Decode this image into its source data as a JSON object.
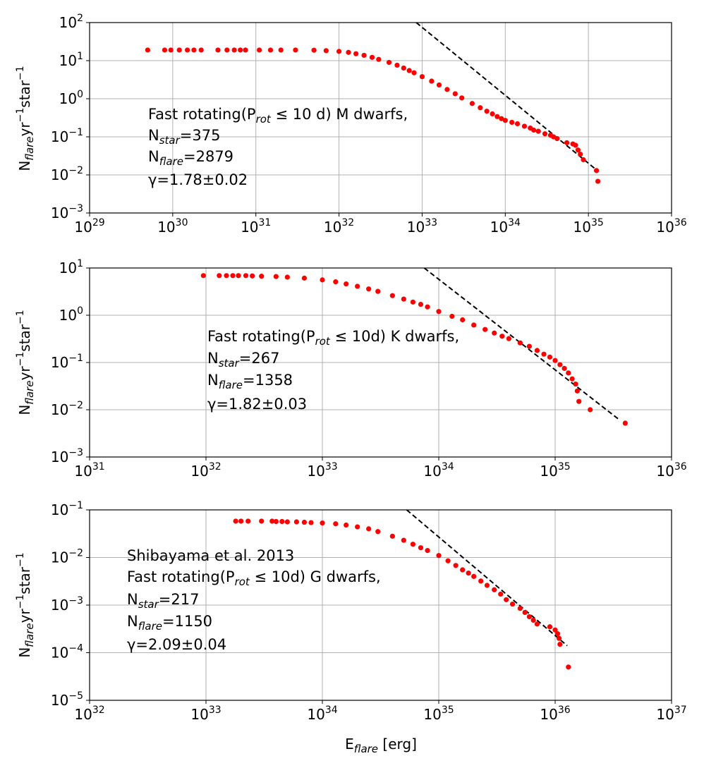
{
  "figure": {
    "shared_xlabel": {
      "base": "E",
      "sub": "flare",
      "rest": " [erg]"
    },
    "ylabel": {
      "base": "N",
      "sub": "flare",
      "mid": "yr",
      "sup1": "−1",
      "mid2": "star",
      "sup2": "−1"
    }
  },
  "colors": {
    "points": "#ff0000",
    "fit": "#000000",
    "grid": "#b0b0b0"
  },
  "chart_data": [
    {
      "type": "scatter",
      "title": "",
      "xscale": "log",
      "yscale": "log",
      "xlim_exp": [
        29,
        36
      ],
      "ylim_exp": [
        -3,
        2
      ],
      "xticks": [
        "29",
        "30",
        "31",
        "32",
        "33",
        "34",
        "35",
        "36"
      ],
      "yticks": [
        "2",
        "1",
        "0",
        "−1",
        "−2",
        "−3"
      ],
      "grid": true,
      "annotation": {
        "line1": {
          "pre": "Fast rotating(P",
          "sub": "rot",
          "post": " ≤ 10 d) M dwarfs,"
        },
        "line2": {
          "pre": "N",
          "sub": "star",
          "post": "=375"
        },
        "line3": {
          "pre": "N",
          "sub": "flare",
          "post": "=2879"
        },
        "line4": "γ=1.78±0.02"
      },
      "fit_line": {
        "x": [
          8.5e+32,
          1.28e+35
        ],
        "y": [
          100,
          0.013
        ]
      },
      "scatter": {
        "x": [
          5e+29,
          8e+29,
          9.5e+29,
          1.2e+30,
          1.5e+30,
          1.8e+30,
          2.2e+30,
          3.5e+30,
          4.5e+30,
          5.5e+30,
          6.5e+30,
          7.5e+30,
          1.1e+31,
          1.5e+31,
          2e+31,
          3e+31,
          5e+31,
          7e+31,
          1e+32,
          1.3e+32,
          1.6e+32,
          2e+32,
          2.5e+32,
          3e+32,
          4e+32,
          5e+32,
          6e+32,
          7e+32,
          8e+32,
          1e+33,
          1.3e+33,
          1.6e+33,
          2e+33,
          2.5e+33,
          3e+33,
          4e+33,
          5e+33,
          6e+33,
          7e+33,
          8e+33,
          9e+33,
          1e+34,
          1.2e+34,
          1.4e+34,
          1.7e+34,
          2e+34,
          2.2e+34,
          2.5e+34,
          3e+34,
          3.5e+34,
          3.8e+34,
          4.2e+34,
          5.5e+34,
          6.5e+34,
          7e+34,
          7.5e+34,
          8e+34,
          8.7e+34,
          1.25e+35,
          1.3e+35
        ],
        "y": [
          19,
          19,
          19,
          19,
          19,
          19,
          19,
          19,
          19,
          19,
          19,
          19,
          19,
          19,
          19,
          19,
          18.8,
          18.3,
          17.5,
          16.5,
          15.2,
          13.8,
          12.2,
          10.8,
          9,
          7.6,
          6.4,
          5.5,
          4.8,
          3.8,
          2.9,
          2.3,
          1.75,
          1.35,
          1.05,
          0.75,
          0.58,
          0.47,
          0.4,
          0.34,
          0.3,
          0.27,
          0.24,
          0.22,
          0.19,
          0.17,
          0.15,
          0.14,
          0.12,
          0.11,
          0.1,
          0.09,
          0.07,
          0.065,
          0.06,
          0.045,
          0.035,
          0.025,
          0.013,
          0.0068
        ]
      }
    },
    {
      "type": "scatter",
      "title": "",
      "xscale": "log",
      "yscale": "log",
      "xlim_exp": [
        31,
        36
      ],
      "ylim_exp": [
        -3,
        1
      ],
      "xticks": [
        "31",
        "32",
        "33",
        "34",
        "35",
        "36"
      ],
      "yticks": [
        "1",
        "0",
        "−1",
        "−2",
        "−3"
      ],
      "grid": true,
      "annotation": {
        "line1": {
          "pre": "Fast rotating(P",
          "sub": "rot",
          "post": " ≤ 10d) K dwarfs,"
        },
        "line2": {
          "pre": "N",
          "sub": "star",
          "post": "=267"
        },
        "line3": {
          "pre": "N",
          "sub": "flare",
          "post": "=1358"
        },
        "line4": "γ=1.82±0.03"
      },
      "fit_line": {
        "x": [
          7.5e+33,
          3.6e+35
        ],
        "y": [
          10,
          0.006
        ]
      },
      "scatter": {
        "x": [
          9.5e+31,
          1.3e+32,
          1.5e+32,
          1.7e+32,
          1.9e+32,
          2.2e+32,
          2.5e+32,
          3e+32,
          4e+32,
          5e+32,
          7e+32,
          1e+33,
          1.3e+33,
          1.6e+33,
          2e+33,
          2.5e+33,
          3e+33,
          4e+33,
          5e+33,
          6e+33,
          7e+33,
          8e+33,
          1e+34,
          1.3e+34,
          1.6e+34,
          2e+34,
          2.5e+34,
          3e+34,
          3.5e+34,
          4e+34,
          5e+34,
          6e+34,
          7e+34,
          8e+34,
          9e+34,
          1e+35,
          1.1e+35,
          1.2e+35,
          1.3e+35,
          1.4e+35,
          1.5e+35,
          1.55e+35,
          1.6e+35,
          2e+35,
          4e+35
        ],
        "y": [
          6.9,
          6.9,
          6.9,
          6.9,
          6.9,
          6.9,
          6.8,
          6.7,
          6.6,
          6.4,
          6.1,
          5.6,
          5.1,
          4.6,
          4.1,
          3.6,
          3.2,
          2.6,
          2.2,
          1.9,
          1.7,
          1.5,
          1.2,
          0.95,
          0.8,
          0.62,
          0.5,
          0.42,
          0.36,
          0.32,
          0.26,
          0.22,
          0.18,
          0.15,
          0.13,
          0.11,
          0.09,
          0.075,
          0.06,
          0.045,
          0.035,
          0.025,
          0.015,
          0.01,
          0.0052
        ]
      }
    },
    {
      "type": "scatter",
      "title": "",
      "xscale": "log",
      "yscale": "log",
      "xlim_exp": [
        32,
        37
      ],
      "ylim_exp": [
        -5,
        -1
      ],
      "xticks": [
        "32",
        "33",
        "34",
        "35",
        "36",
        "37"
      ],
      "yticks": [
        "−1",
        "−2",
        "−3",
        "−4",
        "−5"
      ],
      "grid": true,
      "annotation": {
        "line0": "Shibayama et al. 2013",
        "line1": {
          "pre": "Fast rotating(P",
          "sub": "rot",
          "post": " ≤ 10d) G dwarfs,"
        },
        "line2": {
          "pre": "N",
          "sub": "star",
          "post": "=217"
        },
        "line3": {
          "pre": "N",
          "sub": "flare",
          "post": "=1150"
        },
        "line4": "γ=2.09±0.04"
      },
      "fit_line": {
        "x": [
          5.3e+34,
          1.27e+36
        ],
        "y": [
          0.1,
          0.00014
        ]
      },
      "scatter": {
        "x": [
          1.8e+33,
          2e+33,
          2.3e+33,
          3e+33,
          3.7e+33,
          4e+33,
          4.5e+33,
          5e+33,
          6e+33,
          7e+33,
          8e+33,
          1e+34,
          1.3e+34,
          1.6e+34,
          2e+34,
          2.5e+34,
          3e+34,
          4e+34,
          5e+34,
          6e+34,
          7e+34,
          8e+34,
          1e+35,
          1.2e+35,
          1.4e+35,
          1.6e+35,
          1.8e+35,
          2e+35,
          2.3e+35,
          2.6e+35,
          3e+35,
          3.4e+35,
          3.8e+35,
          4.3e+35,
          5e+35,
          5.5e+35,
          6e+35,
          6.5e+35,
          7e+35,
          9e+35,
          1e+36,
          1.05e+36,
          1.08e+36,
          1.1e+36,
          1.3e+36
        ],
        "y": [
          0.058,
          0.058,
          0.058,
          0.058,
          0.058,
          0.057,
          0.057,
          0.056,
          0.056,
          0.055,
          0.054,
          0.053,
          0.051,
          0.048,
          0.044,
          0.04,
          0.035,
          0.028,
          0.023,
          0.019,
          0.016,
          0.014,
          0.011,
          0.0085,
          0.0068,
          0.0055,
          0.0047,
          0.004,
          0.0032,
          0.0026,
          0.0021,
          0.0017,
          0.0013,
          0.00105,
          0.00085,
          0.0007,
          0.00057,
          0.00048,
          0.0004,
          0.00035,
          0.0003,
          0.00025,
          0.0002,
          0.00015,
          5e-05
        ]
      }
    }
  ]
}
